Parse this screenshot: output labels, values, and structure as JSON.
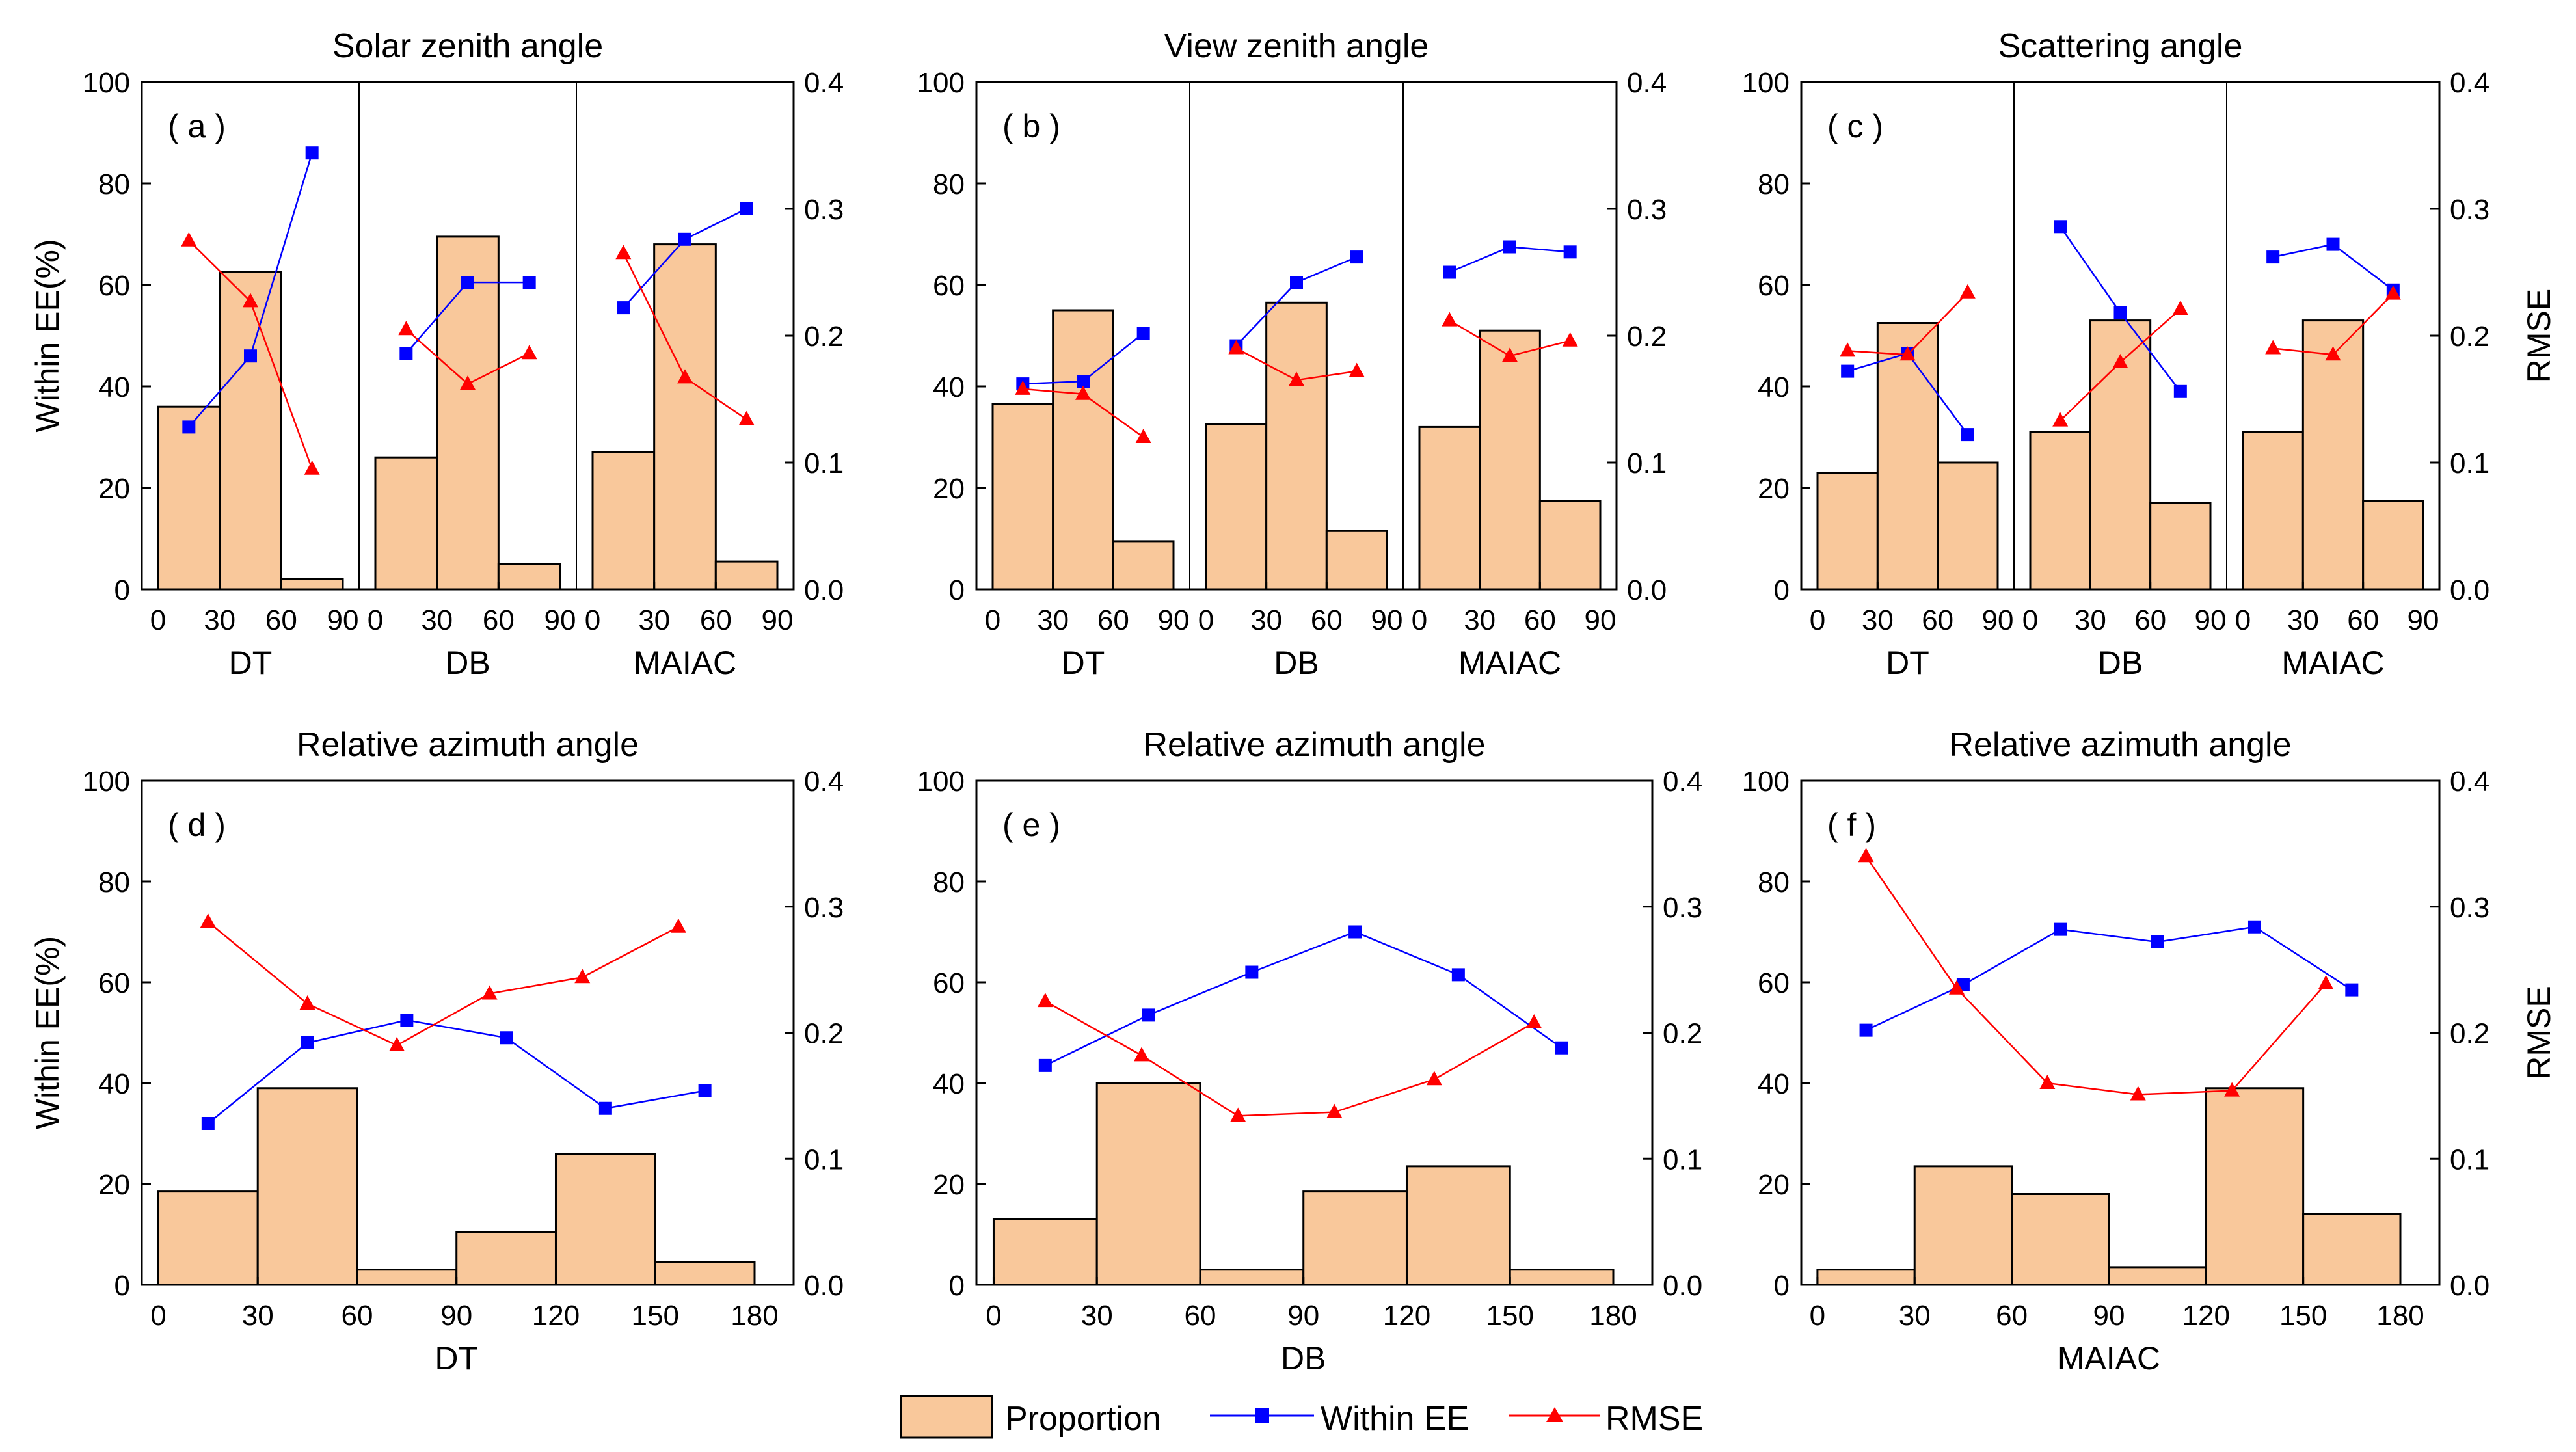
{
  "colors": {
    "proportion": "#f9c89b",
    "within": "#0000ff",
    "rmse": "#ff0000",
    "frame": "#000000"
  },
  "legend": {
    "proportion": "Proportion",
    "within": "Within EE",
    "rmse": "RMSE"
  },
  "chart_data": [
    {
      "id": "a",
      "type": "bar+line",
      "title": "Solar zenith angle",
      "letter": "( a )",
      "ylabel_left": "Within EE(%)",
      "ylabel_right": "",
      "ylim_left": [
        0,
        100
      ],
      "ylim_right": [
        0,
        0.4
      ],
      "yticks_left": [
        "0",
        "20",
        "40",
        "60",
        "80",
        "100"
      ],
      "yticks_right": [
        "0.0",
        "0.1",
        "0.2",
        "0.3",
        "0.4"
      ],
      "groups": [
        {
          "name": "DT",
          "xticks": [
            "0",
            "30",
            "60",
            "90"
          ],
          "xlim": [
            0,
            90
          ],
          "bins": [
            [
              0,
              30
            ],
            [
              30,
              60
            ],
            [
              60,
              90
            ]
          ],
          "proportion": [
            36,
            62.5,
            2
          ],
          "within_x": [
            15,
            45,
            75
          ],
          "within": [
            32,
            46,
            86
          ],
          "rmse_x": [
            15,
            45,
            75
          ],
          "rmse": [
            0.275,
            0.227,
            0.095
          ]
        },
        {
          "name": "DB",
          "xticks": [
            "0",
            "30",
            "60",
            "90"
          ],
          "xlim": [
            0,
            90
          ],
          "bins": [
            [
              0,
              30
            ],
            [
              30,
              60
            ],
            [
              60,
              90
            ]
          ],
          "proportion": [
            26,
            69.5,
            5
          ],
          "within_x": [
            15,
            45,
            75
          ],
          "within": [
            46.5,
            60.5,
            60.5
          ],
          "rmse_x": [
            15,
            45,
            75
          ],
          "rmse": [
            0.205,
            0.162,
            0.186
          ]
        },
        {
          "name": "MAIAC",
          "xticks": [
            "0",
            "30",
            "60",
            "90"
          ],
          "xlim": [
            0,
            90
          ],
          "bins": [
            [
              0,
              30
            ],
            [
              30,
              60
            ],
            [
              60,
              90
            ]
          ],
          "proportion": [
            27,
            68,
            5.5
          ],
          "within_x": [
            15,
            45,
            75
          ],
          "within": [
            55.5,
            69,
            75
          ],
          "rmse_x": [
            15,
            45,
            75
          ],
          "rmse": [
            0.265,
            0.167,
            0.134
          ]
        }
      ]
    },
    {
      "id": "b",
      "type": "bar+line",
      "title": "View zenith angle",
      "letter": "( b )",
      "ylabel_left": "",
      "ylabel_right": "",
      "ylim_left": [
        0,
        100
      ],
      "ylim_right": [
        0,
        0.4
      ],
      "yticks_left": [
        "0",
        "20",
        "40",
        "60",
        "80",
        "100"
      ],
      "yticks_right": [
        "0.0",
        "0.1",
        "0.2",
        "0.3",
        "0.4"
      ],
      "groups": [
        {
          "name": "DT",
          "xticks": [
            "0",
            "30",
            "60",
            "90"
          ],
          "xlim": [
            0,
            90
          ],
          "bins": [
            [
              0,
              30
            ],
            [
              30,
              60
            ],
            [
              60,
              90
            ]
          ],
          "proportion": [
            36.5,
            55,
            9.5
          ],
          "within_x": [
            15,
            45,
            75
          ],
          "within": [
            40.5,
            41,
            50.5
          ],
          "rmse_x": [
            15,
            45,
            75
          ],
          "rmse": [
            0.158,
            0.154,
            0.12
          ]
        },
        {
          "name": "DB",
          "xticks": [
            "0",
            "30",
            "60",
            "90"
          ],
          "xlim": [
            0,
            90
          ],
          "bins": [
            [
              0,
              30
            ],
            [
              30,
              60
            ],
            [
              60,
              90
            ]
          ],
          "proportion": [
            32.5,
            56.5,
            11.5
          ],
          "within_x": [
            15,
            45,
            75
          ],
          "within": [
            48,
            60.5,
            65.5
          ],
          "rmse_x": [
            15,
            45,
            75
          ],
          "rmse": [
            0.19,
            0.165,
            0.172
          ]
        },
        {
          "name": "MAIAC",
          "xticks": [
            "0",
            "30",
            "60",
            "90"
          ],
          "xlim": [
            0,
            90
          ],
          "bins": [
            [
              0,
              30
            ],
            [
              30,
              60
            ],
            [
              60,
              90
            ]
          ],
          "proportion": [
            32,
            51,
            17.5
          ],
          "within_x": [
            15,
            45,
            75
          ],
          "within": [
            62.5,
            67.5,
            66.5
          ],
          "rmse_x": [
            15,
            45,
            75
          ],
          "rmse": [
            0.212,
            0.184,
            0.196
          ]
        }
      ]
    },
    {
      "id": "c",
      "type": "bar+line",
      "title": "Scattering angle",
      "letter": "( c )",
      "ylabel_left": "",
      "ylabel_right": "RMSE",
      "ylim_left": [
        0,
        100
      ],
      "ylim_right": [
        0,
        0.4
      ],
      "yticks_left": [
        "0",
        "20",
        "40",
        "60",
        "80",
        "100"
      ],
      "yticks_right": [
        "0.0",
        "0.1",
        "0.2",
        "0.3",
        "0.4"
      ],
      "groups": [
        {
          "name": "DT",
          "xticks": [
            "0",
            "30",
            "60",
            "90"
          ],
          "xlim": [
            0,
            90
          ],
          "bins": [
            [
              0,
              30
            ],
            [
              30,
              60
            ],
            [
              60,
              90
            ]
          ],
          "proportion": [
            23,
            52.5,
            25
          ],
          "within_x": [
            15,
            45,
            75
          ],
          "within": [
            43,
            46.5,
            30.5
          ],
          "rmse_x": [
            15,
            45,
            75
          ],
          "rmse": [
            0.188,
            0.185,
            0.234
          ]
        },
        {
          "name": "DB",
          "xticks": [
            "0",
            "30",
            "60",
            "90"
          ],
          "xlim": [
            0,
            90
          ],
          "bins": [
            [
              0,
              30
            ],
            [
              30,
              60
            ],
            [
              60,
              90
            ]
          ],
          "proportion": [
            31,
            53,
            17
          ],
          "within_x": [
            15,
            45,
            75
          ],
          "within": [
            71.5,
            54.5,
            39
          ],
          "rmse_x": [
            15,
            45,
            75
          ],
          "rmse": [
            0.133,
            0.179,
            0.221
          ]
        },
        {
          "name": "MAIAC",
          "xticks": [
            "0",
            "30",
            "60",
            "90"
          ],
          "xlim": [
            0,
            90
          ],
          "bins": [
            [
              0,
              30
            ],
            [
              30,
              60
            ],
            [
              60,
              90
            ]
          ],
          "proportion": [
            31,
            53,
            17.5
          ],
          "within_x": [
            15,
            45,
            75
          ],
          "within": [
            65.5,
            68,
            59
          ],
          "rmse_x": [
            15,
            45,
            75
          ],
          "rmse": [
            0.19,
            0.185,
            0.233
          ]
        }
      ]
    },
    {
      "id": "d",
      "type": "bar+line",
      "title": "Relative azimuth angle",
      "letter": "( d )",
      "ylabel_left": "Within EE(%)",
      "ylabel_right": "",
      "ylim_left": [
        0,
        100
      ],
      "ylim_right": [
        0,
        0.4
      ],
      "yticks_left": [
        "0",
        "20",
        "40",
        "60",
        "80",
        "100"
      ],
      "yticks_right": [
        "0.0",
        "0.1",
        "0.2",
        "0.3",
        "0.4"
      ],
      "groups": [
        {
          "name": "DT",
          "xticks": [
            "0",
            "30",
            "60",
            "90",
            "120",
            "150",
            "180"
          ],
          "xlim": [
            -5,
            180
          ],
          "bins": [
            [
              0,
              30
            ],
            [
              30,
              60
            ],
            [
              60,
              90
            ],
            [
              90,
              120
            ],
            [
              120,
              150
            ],
            [
              150,
              180
            ]
          ],
          "proportion": [
            18.5,
            39,
            3,
            10.5,
            26,
            4.5
          ],
          "within_x": [
            15,
            45,
            75,
            105,
            135,
            165
          ],
          "within": [
            32,
            48,
            52.5,
            49,
            35,
            38.5
          ],
          "rmse_x": [
            15,
            45,
            72,
            100,
            128,
            157
          ],
          "rmse": [
            0.288,
            0.223,
            0.19,
            0.231,
            0.244,
            0.284
          ]
        }
      ]
    },
    {
      "id": "e",
      "type": "bar+line",
      "title": "Relative azimuth angle",
      "letter": "( e )",
      "ylabel_left": "",
      "ylabel_right": "",
      "ylim_left": [
        0,
        100
      ],
      "ylim_right": [
        0,
        0.4
      ],
      "yticks_left": [
        "0",
        "20",
        "40",
        "60",
        "80",
        "100"
      ],
      "yticks_right": [
        "0.0",
        "0.1",
        "0.2",
        "0.3",
        "0.4"
      ],
      "groups": [
        {
          "name": "DB",
          "xticks": [
            "0",
            "30",
            "60",
            "90",
            "120",
            "150",
            "180"
          ],
          "xlim": [
            -5,
            180
          ],
          "bins": [
            [
              0,
              30
            ],
            [
              30,
              60
            ],
            [
              60,
              90
            ],
            [
              90,
              120
            ],
            [
              120,
              150
            ],
            [
              150,
              180
            ]
          ],
          "proportion": [
            13,
            40,
            3,
            18.5,
            23.5,
            3
          ],
          "within_x": [
            15,
            45,
            75,
            105,
            135,
            165
          ],
          "within": [
            43.5,
            53.5,
            62,
            70,
            61.5,
            47
          ],
          "rmse_x": [
            15,
            43,
            71,
            99,
            128,
            157
          ],
          "rmse": [
            0.225,
            0.182,
            0.134,
            0.137,
            0.163,
            0.208
          ]
        }
      ]
    },
    {
      "id": "f",
      "type": "bar+line",
      "title": "Relative azimuth angle",
      "letter": "( f )",
      "ylabel_left": "",
      "ylabel_right": "RMSE",
      "ylim_left": [
        0,
        100
      ],
      "ylim_right": [
        0,
        0.4
      ],
      "yticks_left": [
        "0",
        "20",
        "40",
        "60",
        "80",
        "100"
      ],
      "yticks_right": [
        "0.0",
        "0.1",
        "0.2",
        "0.3",
        "0.4"
      ],
      "groups": [
        {
          "name": "MAIAC",
          "xticks": [
            "0",
            "30",
            "60",
            "90",
            "120",
            "150",
            "180"
          ],
          "xlim": [
            -5,
            180
          ],
          "bins": [
            [
              0,
              30
            ],
            [
              30,
              60
            ],
            [
              60,
              90
            ],
            [
              90,
              120
            ],
            [
              120,
              150
            ],
            [
              150,
              180
            ]
          ],
          "proportion": [
            3,
            23.5,
            18,
            3.5,
            39,
            14
          ],
          "within_x": [
            15,
            45,
            75,
            105,
            135,
            165
          ],
          "within": [
            50.5,
            59.5,
            70.5,
            68,
            71,
            58.5
          ],
          "rmse_x": [
            15,
            43,
            71,
            99,
            128,
            157
          ],
          "rmse": [
            0.34,
            0.235,
            0.16,
            0.151,
            0.154,
            0.239
          ]
        }
      ]
    }
  ]
}
